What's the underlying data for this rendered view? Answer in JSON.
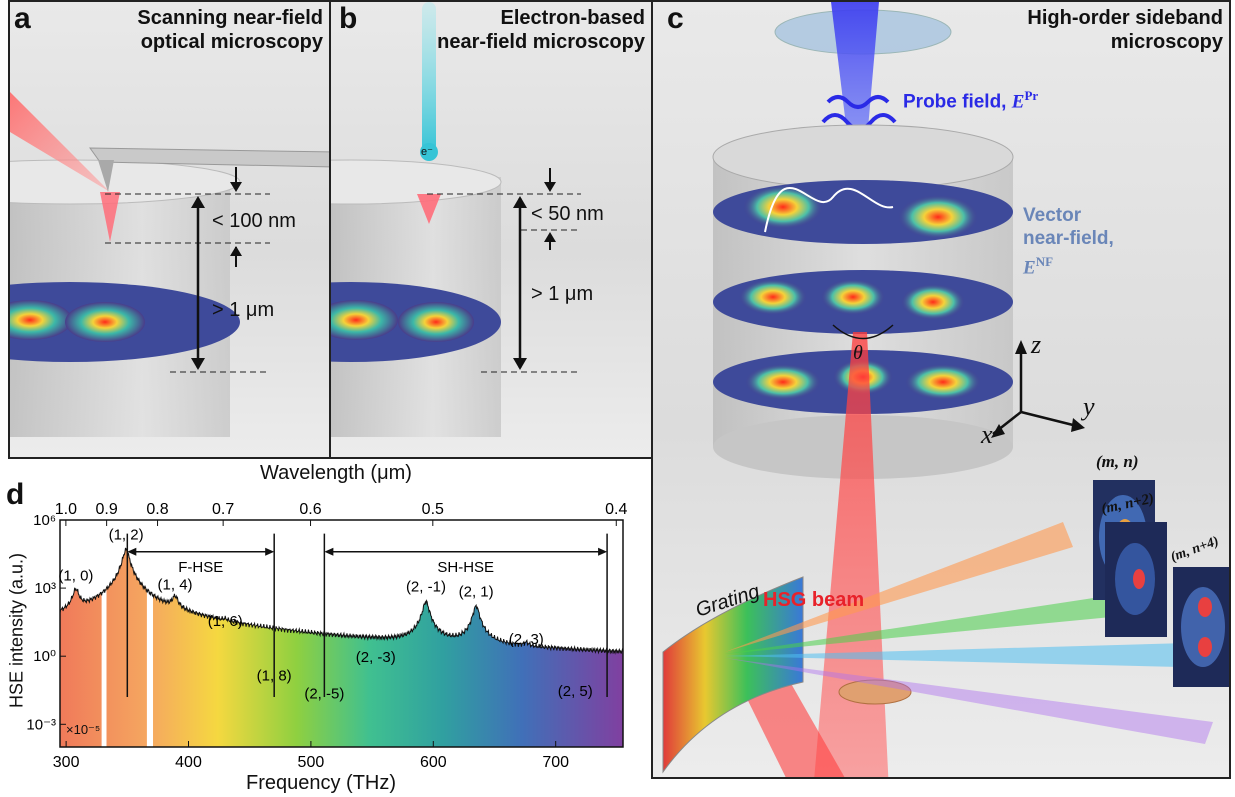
{
  "panel_a": {
    "label": "a",
    "title_line1": "Scanning near-field",
    "title_line2": "optical microscopy",
    "depth_near": "< 100 nm",
    "depth_far": "> 1 μm"
  },
  "panel_b": {
    "label": "b",
    "title_line1": "Electron-based",
    "title_line2": "near-field microscopy",
    "electron": "e⁻",
    "depth_near": "< 50 nm",
    "depth_far": "> 1 μm"
  },
  "panel_c": {
    "label": "c",
    "title_line1": "High-order sideband",
    "title_line2": "microscopy",
    "probe_label": "Probe field, ",
    "probe_symbol": "E",
    "probe_sup": "Pr",
    "vector_line1": "Vector",
    "vector_line2": "near-field,",
    "vector_symbol": "E",
    "vector_sup": "NF",
    "theta": "θ",
    "axis_z": "z",
    "axis_y": "y",
    "axis_x": "x",
    "hsg_beam": "HSG beam",
    "grating": "Grating",
    "image_labels": [
      "(m, n)",
      "(m, n+2)",
      "(m, n+4)"
    ],
    "colors": {
      "probe": "#2a2ae6",
      "vector": "#6a86b8",
      "hsg": "#e8222a"
    }
  },
  "panel_d": {
    "label": "d"
  },
  "chart_data": {
    "type": "line",
    "xlabel": "Frequency (THz)",
    "x2label": "Wavelength (μm)",
    "ylabel": "HSE intensity (a.u.)",
    "xlim": [
      295,
      755
    ],
    "xticks": [
      300,
      400,
      500,
      600,
      700
    ],
    "x2ticks": [
      "1.0",
      "0.9",
      "0.8",
      "0.7",
      "0.6",
      "0.5",
      "0.4"
    ],
    "x2tick_freq": [
      299.8,
      333.1,
      374.7,
      428.3,
      499.7,
      599.6,
      749.5
    ],
    "y_log": true,
    "ylim_exp": [
      -4,
      6
    ],
    "yticks": [
      "10⁻³",
      "10⁰",
      "10³",
      "10⁶"
    ],
    "ytick_exp": [
      -3,
      0,
      3,
      6
    ],
    "scale_note": "×10⁻⁵",
    "peaks": [
      {
        "label": "(1, 0)",
        "x": 308,
        "log_y": 2.9
      },
      {
        "label": "(1, 2)",
        "x": 349,
        "log_y": 4.7
      },
      {
        "label": "(1, 4)",
        "x": 389,
        "log_y": 2.5
      },
      {
        "label": "(1, 6)",
        "x": 430,
        "log_y": 0.9
      },
      {
        "label": "(1, 8)",
        "x": 470,
        "log_y": -1.5
      },
      {
        "label": "(2, -5)",
        "x": 511,
        "log_y": -2.3
      },
      {
        "label": "(2, -3)",
        "x": 553,
        "log_y": -0.7
      },
      {
        "label": "(2, -1)",
        "x": 594,
        "log_y": 2.4
      },
      {
        "label": "(2, 1)",
        "x": 635,
        "log_y": 2.2
      },
      {
        "label": "(2, 3)",
        "x": 676,
        "log_y": 0.1
      },
      {
        "label": "(2, 5)",
        "x": 716,
        "log_y": -2.2
      }
    ],
    "ranges": [
      {
        "name": "F-HSE",
        "x_start": 350,
        "x_end": 470
      },
      {
        "name": "SH-HSE",
        "x_start": 511,
        "x_end": 742
      }
    ],
    "grid": false
  }
}
